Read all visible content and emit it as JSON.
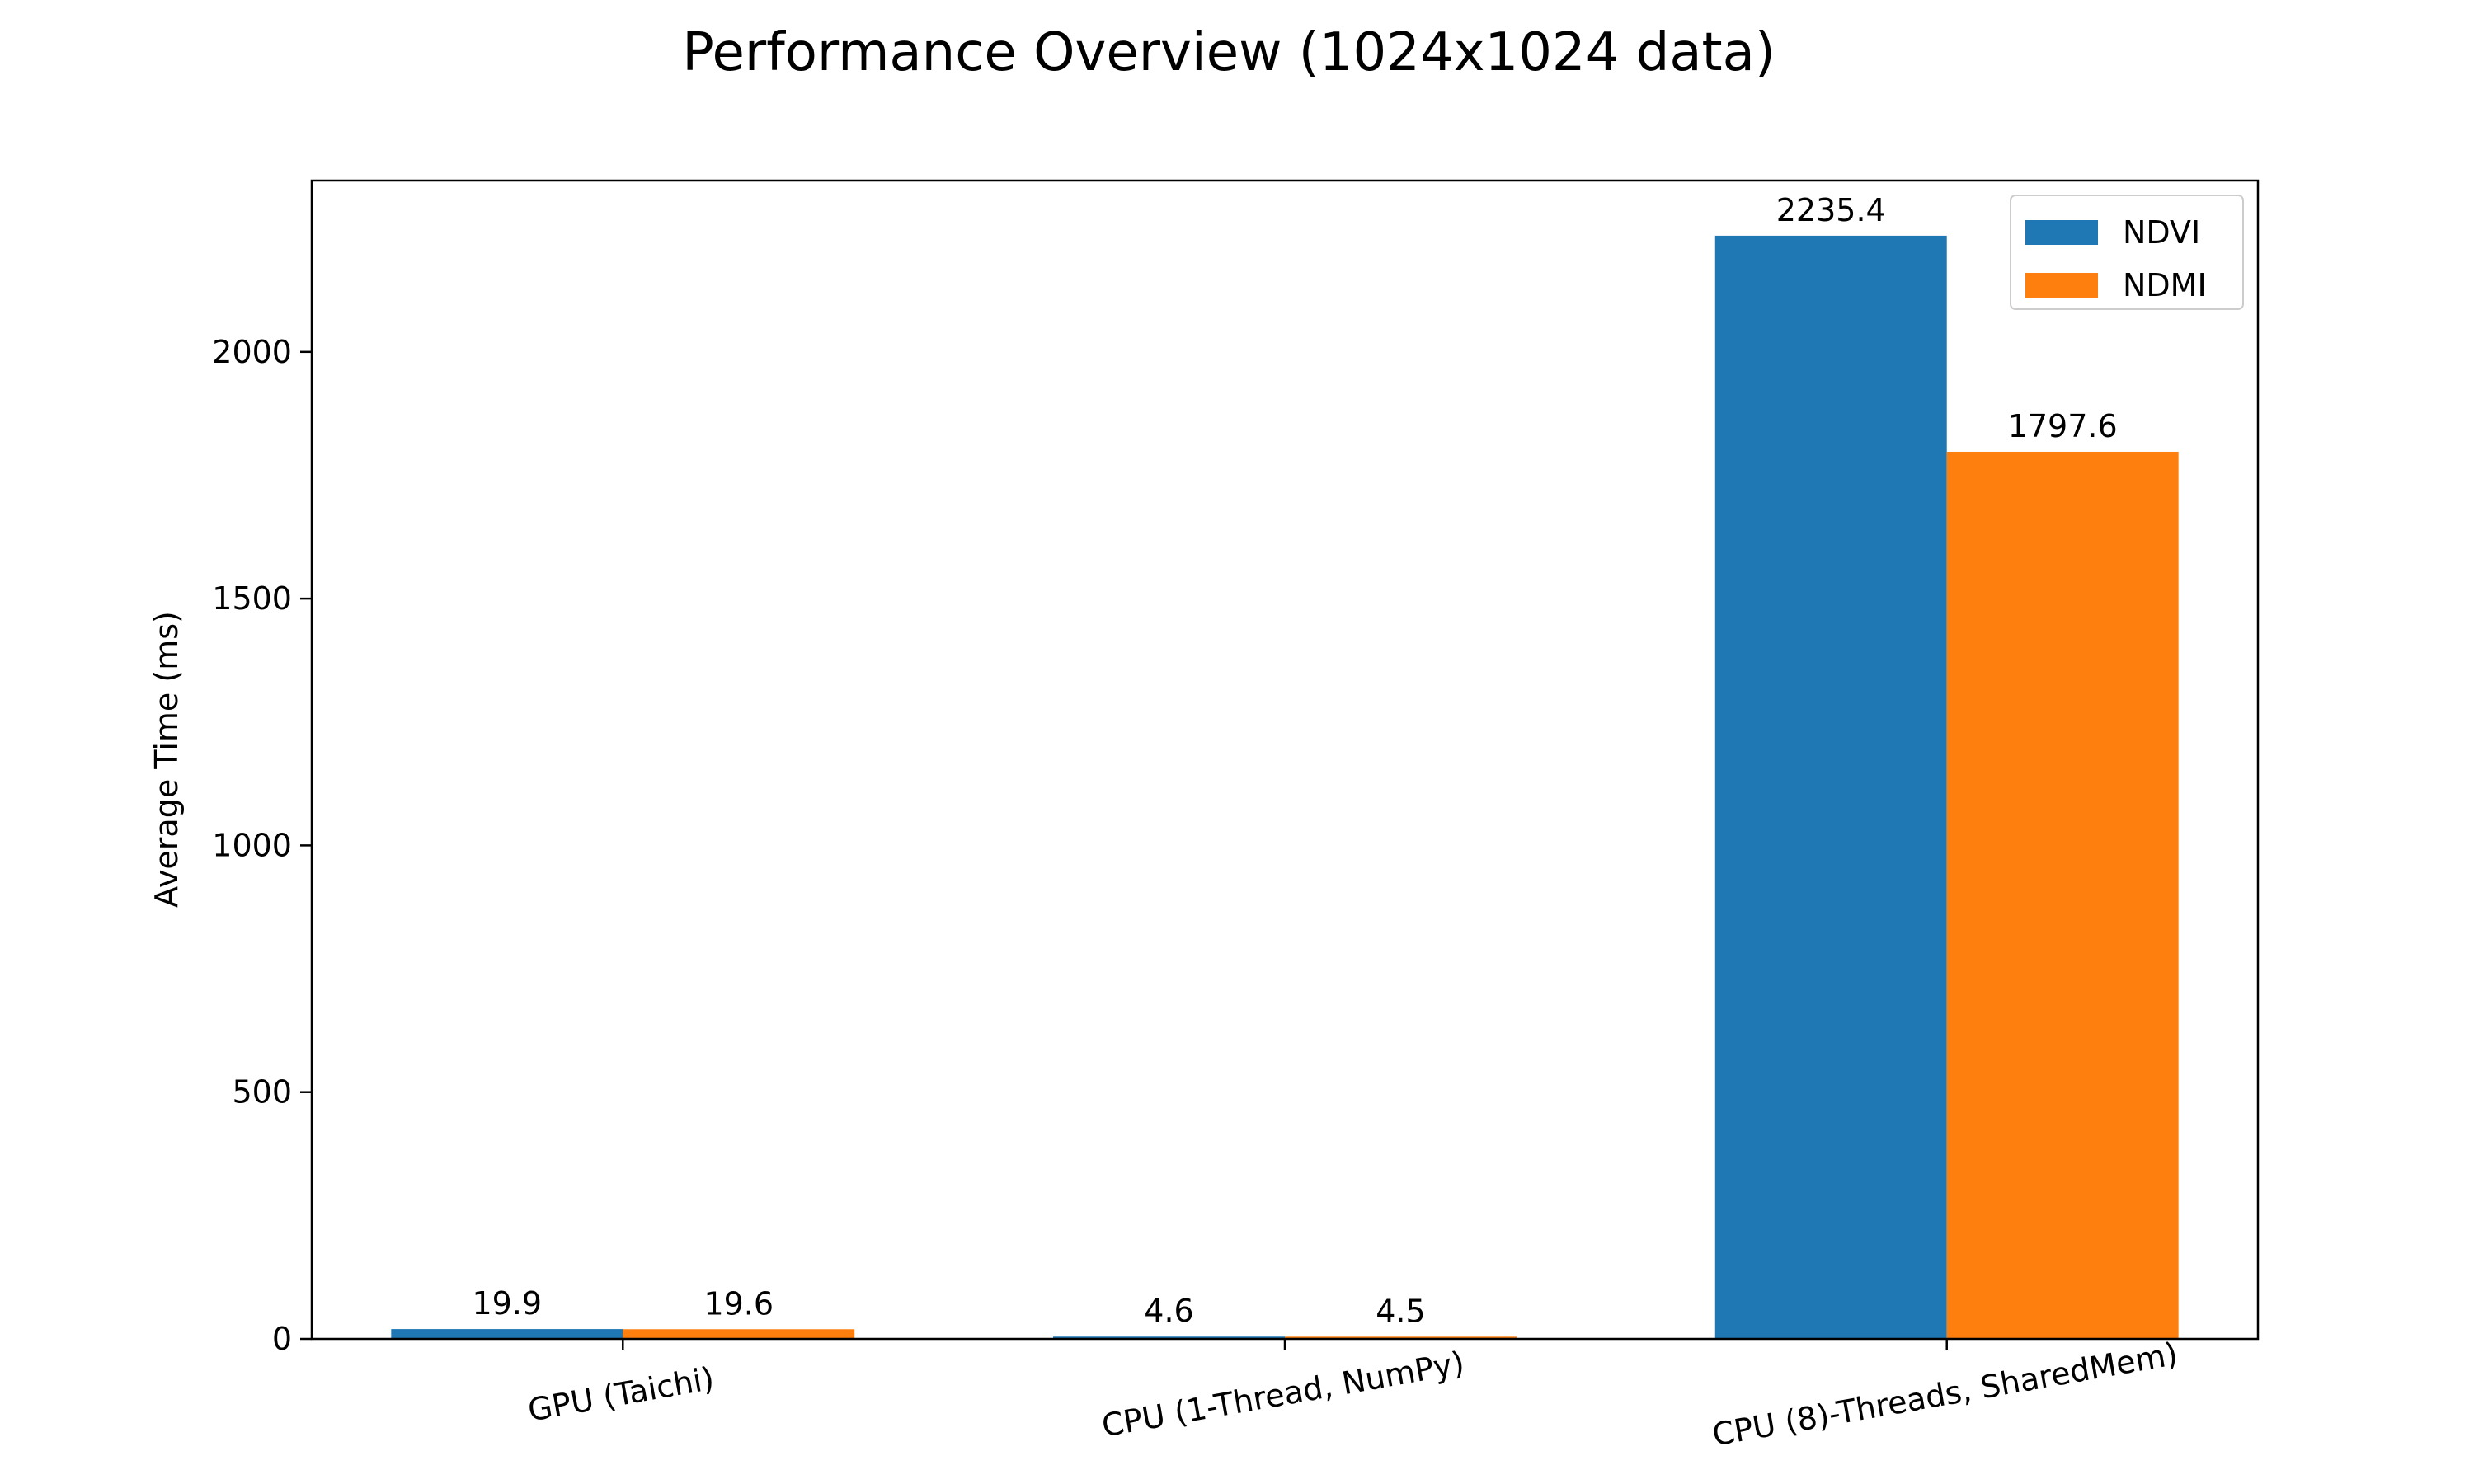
{
  "chart_data": {
    "type": "bar",
    "title": "Performance Overview (1024x1024 data)",
    "xlabel": "",
    "ylabel": "Average Time (ms)",
    "categories": [
      "GPU (Taichi)",
      "CPU (1-Thread, NumPy)",
      "CPU (8)-Threads, SharedMem)"
    ],
    "series": [
      {
        "name": "NDVI",
        "color": "#1f77b4",
        "values": [
          19.9,
          4.6,
          2235.4
        ],
        "labels": [
          "19.9",
          "4.6",
          "2235.4"
        ]
      },
      {
        "name": "NDMI",
        "color": "#ff7f0e",
        "values": [
          19.6,
          4.5,
          1797.6
        ],
        "labels": [
          "19.6",
          "4.5",
          "1797.6"
        ]
      }
    ],
    "ylim": [
      0,
      2347.17
    ],
    "yticks": [
      0,
      500,
      1000,
      1500,
      2000
    ],
    "ytick_labels": [
      "0",
      "500",
      "1000",
      "1500",
      "2000"
    ],
    "legend_position": "top-right",
    "grid": false
  }
}
